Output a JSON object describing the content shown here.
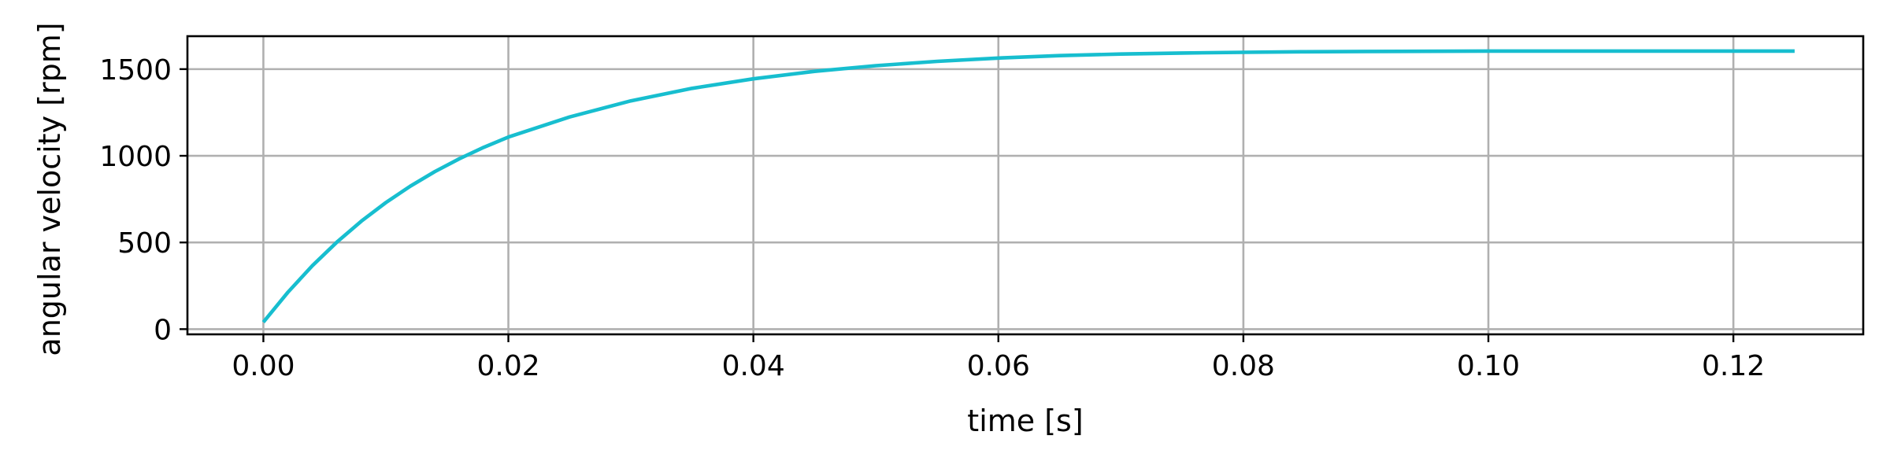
{
  "chart_data": {
    "type": "line",
    "xlabel": "time [s]",
    "ylabel": "angular velocity [rpm]",
    "xlim": [
      -0.0062,
      0.1306
    ],
    "ylim": [
      -30,
      1690
    ],
    "xticks": [
      0.0,
      0.02,
      0.04,
      0.06,
      0.08,
      0.1,
      0.12
    ],
    "xtick_labels": [
      "0.00",
      "0.02",
      "0.04",
      "0.06",
      "0.08",
      "0.10",
      "0.12"
    ],
    "yticks": [
      0,
      500,
      1000,
      1500
    ],
    "ytick_labels": [
      "0",
      "500",
      "1000",
      "1500"
    ],
    "grid": true,
    "legend": "none",
    "series": [
      {
        "color": "#17becf",
        "x": [
          0.0,
          0.002,
          0.004,
          0.006,
          0.008,
          0.01,
          0.012,
          0.014,
          0.016,
          0.018,
          0.02,
          0.025,
          0.03,
          0.035,
          0.04,
          0.045,
          0.05,
          0.055,
          0.06,
          0.065,
          0.07,
          0.075,
          0.08,
          0.085,
          0.09,
          0.095,
          0.1,
          0.105,
          0.11,
          0.115,
          0.12,
          0.125
        ],
        "y": [
          40,
          213,
          366,
          502,
          623,
          730,
          825,
          909,
          983,
          1049,
          1108,
          1224,
          1317,
          1389,
          1444,
          1487,
          1520,
          1545,
          1564,
          1578,
          1587,
          1593,
          1597,
          1600,
          1602,
          1603,
          1604,
          1604,
          1604,
          1604,
          1604,
          1604
        ]
      }
    ]
  }
}
